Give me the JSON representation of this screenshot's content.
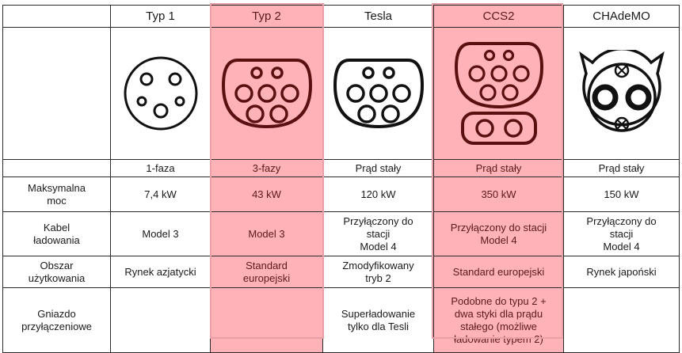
{
  "table": {
    "columns": [
      {
        "label": "",
        "highlight": false
      },
      {
        "label": "Typ 1",
        "highlight": false
      },
      {
        "label": "Typ 2",
        "highlight": true
      },
      {
        "label": "Tesla",
        "highlight": false
      },
      {
        "label": "CCS2",
        "highlight": true
      },
      {
        "label": "CHAdeMO",
        "highlight": false
      }
    ],
    "connector_icons": [
      "type1-connector-icon",
      "type2-connector-icon",
      "tesla-connector-icon",
      "ccs2-connector-icon",
      "chademo-connector-icon"
    ],
    "rows": [
      {
        "label": "",
        "cells": [
          "1-faza",
          "3-fazy",
          "Prąd stały",
          "Prąd stały",
          "Prąd stały"
        ]
      },
      {
        "label": "Maksymalna\nmoc",
        "cells": [
          "7,4 kW",
          "43 kW",
          "120 kW",
          "350 kW",
          "150 kW"
        ]
      },
      {
        "label": "Kabel\nładowania",
        "cells": [
          "Model 3",
          "Model 3",
          "Przyłączony do\nstacji\nModel 4",
          "Przyłączony do stacji\nModel 4",
          "Przyłączony do\nstacji\nModel 4"
        ]
      },
      {
        "label": "Obszar\nużytkowania",
        "cells": [
          "Rynek azjatycki",
          "Standard\neuropejski",
          "Zmodyfikowany\ntryb 2",
          "Standard europejski",
          "Rynek japoński"
        ]
      },
      {
        "label": "Gniazdo\nprzyłączeniowe",
        "cells": [
          "",
          "",
          "Superładowanie\ntylko dla Tesli",
          "Podobne do typu 2 +\ndwa styki dla prądu\nstałego (możliwe\nładowanie typem 2)",
          ""
        ]
      }
    ],
    "colors": {
      "highlight_bg": "#ffb3b8",
      "highlight_border": "#e8a0a6",
      "connector_dark": "#111111",
      "connector_highlight": "#5a1010"
    }
  }
}
